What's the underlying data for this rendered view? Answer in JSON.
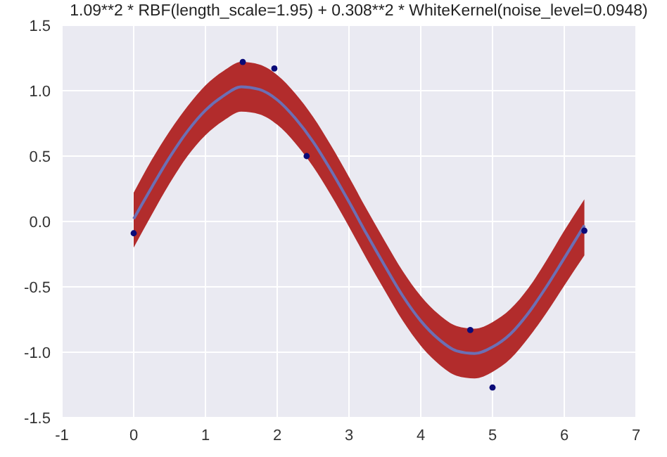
{
  "chart_data": {
    "type": "line",
    "title": "1.09**2 * RBF(length_scale=1.95) + 0.308**2 * WhiteKernel(noise_level=0.0948)",
    "series": [
      {
        "color": "#6c6fb4",
        "marker": "none",
        "x": [
          0,
          0.25,
          0.5,
          0.75,
          1,
          1.25,
          1.5,
          1.75,
          2,
          2.25,
          2.5,
          2.75,
          3,
          3.25,
          3.5,
          3.75,
          4,
          4.25,
          4.5,
          4.75,
          5,
          5.25,
          5.5,
          5.75,
          6,
          6.28
        ],
        "values": [
          0.02,
          0.26,
          0.49,
          0.69,
          0.85,
          0.96,
          1.03,
          1.01,
          0.93,
          0.79,
          0.61,
          0.39,
          0.15,
          -0.1,
          -0.34,
          -0.57,
          -0.76,
          -0.9,
          -0.99,
          -1.01,
          -0.96,
          -0.86,
          -0.7,
          -0.5,
          -0.28,
          -0.03
        ],
        "lower": [
          -0.2,
          0.05,
          0.29,
          0.5,
          0.66,
          0.77,
          0.84,
          0.82,
          0.74,
          0.6,
          0.42,
          0.2,
          -0.04,
          -0.29,
          -0.53,
          -0.76,
          -0.95,
          -1.09,
          -1.18,
          -1.2,
          -1.15,
          -1.05,
          -0.89,
          -0.7,
          -0.49,
          -0.26
        ],
        "upper": [
          0.22,
          0.47,
          0.69,
          0.88,
          1.04,
          1.15,
          1.22,
          1.2,
          1.12,
          0.98,
          0.8,
          0.58,
          0.34,
          0.09,
          -0.15,
          -0.38,
          -0.57,
          -0.71,
          -0.8,
          -0.82,
          -0.77,
          -0.67,
          -0.51,
          -0.3,
          -0.07,
          0.17
        ]
      },
      {
        "type": "scatter",
        "color": "#0a0a78",
        "marker": "circle",
        "x": [
          0,
          1.52,
          1.96,
          2.41,
          4.69,
          5.0,
          6.28
        ],
        "values": [
          -0.09,
          1.22,
          1.17,
          0.5,
          -0.83,
          -1.27,
          -0.07
        ]
      }
    ],
    "xlim": [
      -1,
      7
    ],
    "xticks": [
      -1,
      0,
      1,
      2,
      3,
      4,
      5,
      6,
      7
    ],
    "ylim": [
      -1.5,
      1.5
    ],
    "yticks": [
      {
        "value": -1.5,
        "label": "-1.5"
      },
      {
        "value": -1,
        "label": "-1.0"
      },
      {
        "value": -0.5,
        "label": "-0.5"
      },
      {
        "value": 0,
        "label": "0.0"
      },
      {
        "value": 0.5,
        "label": "0.5"
      },
      {
        "value": 1,
        "label": "1.0"
      },
      {
        "value": 1.5,
        "label": "1.5"
      }
    ],
    "grid": true
  }
}
